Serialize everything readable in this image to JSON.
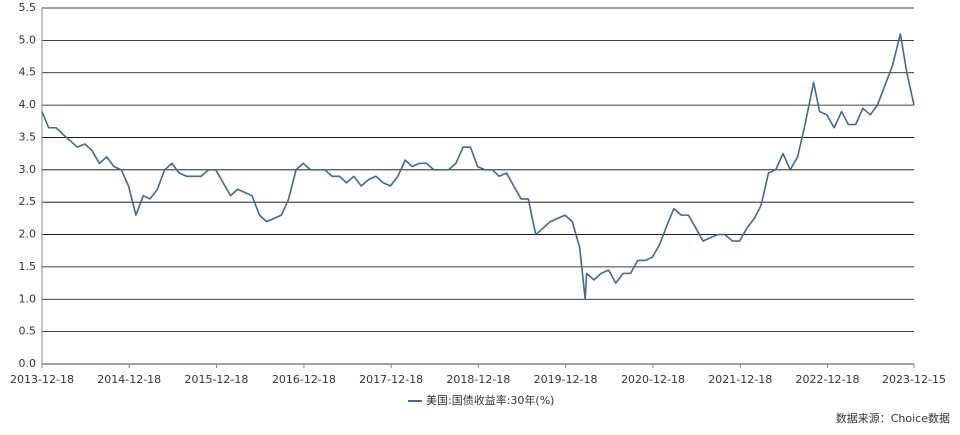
{
  "chart_data": {
    "type": "line",
    "x": [
      "2013-12-18",
      "2014-01-15",
      "2014-02-15",
      "2014-03-15",
      "2014-04-15",
      "2014-05-15",
      "2014-06-15",
      "2014-07-15",
      "2014-08-15",
      "2014-09-15",
      "2014-10-15",
      "2014-11-15",
      "2014-12-15",
      "2015-01-15",
      "2015-02-15",
      "2015-03-15",
      "2015-04-15",
      "2015-05-15",
      "2015-06-15",
      "2015-07-15",
      "2015-08-15",
      "2015-09-15",
      "2015-10-15",
      "2015-11-15",
      "2015-12-15",
      "2016-01-15",
      "2016-02-15",
      "2016-03-15",
      "2016-04-15",
      "2016-05-15",
      "2016-06-15",
      "2016-07-15",
      "2016-08-15",
      "2016-09-15",
      "2016-10-15",
      "2016-11-15",
      "2016-12-15",
      "2017-01-15",
      "2017-02-15",
      "2017-03-15",
      "2017-04-15",
      "2017-05-15",
      "2017-06-15",
      "2017-07-15",
      "2017-08-15",
      "2017-09-15",
      "2017-10-15",
      "2017-11-15",
      "2017-12-15",
      "2018-01-15",
      "2018-02-15",
      "2018-03-15",
      "2018-04-15",
      "2018-05-15",
      "2018-06-15",
      "2018-07-15",
      "2018-08-15",
      "2018-09-15",
      "2018-10-15",
      "2018-11-15",
      "2018-12-15",
      "2019-01-15",
      "2019-02-15",
      "2019-03-15",
      "2019-04-15",
      "2019-05-15",
      "2019-06-15",
      "2019-07-15",
      "2019-08-15",
      "2019-09-15",
      "2019-10-15",
      "2019-11-15",
      "2019-12-15",
      "2020-01-15",
      "2020-02-15",
      "2020-03-09",
      "2020-03-15",
      "2020-04-15",
      "2020-05-15",
      "2020-06-15",
      "2020-07-15",
      "2020-08-15",
      "2020-09-15",
      "2020-10-15",
      "2020-11-15",
      "2020-12-15",
      "2021-01-15",
      "2021-02-15",
      "2021-03-15",
      "2021-04-15",
      "2021-05-15",
      "2021-06-15",
      "2021-07-15",
      "2021-08-15",
      "2021-09-15",
      "2021-10-15",
      "2021-11-15",
      "2021-12-15",
      "2022-01-15",
      "2022-02-15",
      "2022-03-15",
      "2022-04-15",
      "2022-05-15",
      "2022-06-15",
      "2022-07-15",
      "2022-08-15",
      "2022-09-15",
      "2022-10-21",
      "2022-11-15",
      "2022-12-15",
      "2023-01-15",
      "2023-02-15",
      "2023-03-15",
      "2023-04-15",
      "2023-05-15",
      "2023-06-15",
      "2023-07-15",
      "2023-08-15",
      "2023-09-15",
      "2023-10-19",
      "2023-11-15",
      "2023-12-15"
    ],
    "series": [
      {
        "name": "美国:国债收益率:30年(%)",
        "color": "#3d6a96",
        "values": [
          3.9,
          3.65,
          3.65,
          3.55,
          3.45,
          3.35,
          3.4,
          3.3,
          3.1,
          3.2,
          3.05,
          3.0,
          2.75,
          2.3,
          2.6,
          2.55,
          2.7,
          3.0,
          3.1,
          2.95,
          2.9,
          2.9,
          2.9,
          3.0,
          3.0,
          2.8,
          2.6,
          2.7,
          2.65,
          2.6,
          2.3,
          2.2,
          2.25,
          2.3,
          2.55,
          3.0,
          3.1,
          3.0,
          3.0,
          3.0,
          2.9,
          2.9,
          2.8,
          2.9,
          2.75,
          2.85,
          2.9,
          2.8,
          2.75,
          2.9,
          3.15,
          3.05,
          3.1,
          3.1,
          3.0,
          3.0,
          3.0,
          3.1,
          3.35,
          3.35,
          3.05,
          3.0,
          3.0,
          2.9,
          2.95,
          2.75,
          2.55,
          2.55,
          2.0,
          2.1,
          2.2,
          2.25,
          2.3,
          2.2,
          1.8,
          1.0,
          1.4,
          1.3,
          1.4,
          1.45,
          1.25,
          1.4,
          1.4,
          1.6,
          1.6,
          1.65,
          1.85,
          2.15,
          2.4,
          2.3,
          2.3,
          2.1,
          1.9,
          1.95,
          2.0,
          2.0,
          1.9,
          1.9,
          2.1,
          2.25,
          2.45,
          2.95,
          3.0,
          3.25,
          3.0,
          3.2,
          3.7,
          4.35,
          3.9,
          3.85,
          3.65,
          3.9,
          3.7,
          3.7,
          3.95,
          3.85,
          4.0,
          4.3,
          4.6,
          5.1,
          4.5,
          4.0
        ]
      }
    ],
    "xlim": [
      "2013-12-18",
      "2023-12-15"
    ],
    "xticks": [
      "2013-12-18",
      "2014-12-18",
      "2015-12-18",
      "2016-12-18",
      "2017-12-18",
      "2018-12-18",
      "2019-12-18",
      "2020-12-18",
      "2021-12-18",
      "2022-12-18",
      "2023-12-15"
    ],
    "ylim": [
      0,
      5.5
    ],
    "yticks": [
      {
        "value": 0,
        "label": "0.0"
      },
      0.5,
      {
        "value": 1,
        "label": "1.0"
      },
      1.5,
      {
        "value": 2,
        "label": "2.0"
      },
      2.5,
      {
        "value": 3,
        "label": "3.0"
      },
      3.5,
      {
        "value": 4,
        "label": "4.0"
      },
      4.5,
      {
        "value": 5,
        "label": "5.0"
      },
      5.5
    ],
    "grid": true,
    "legend": "bottom",
    "source": "数据来源：Choice数据"
  }
}
